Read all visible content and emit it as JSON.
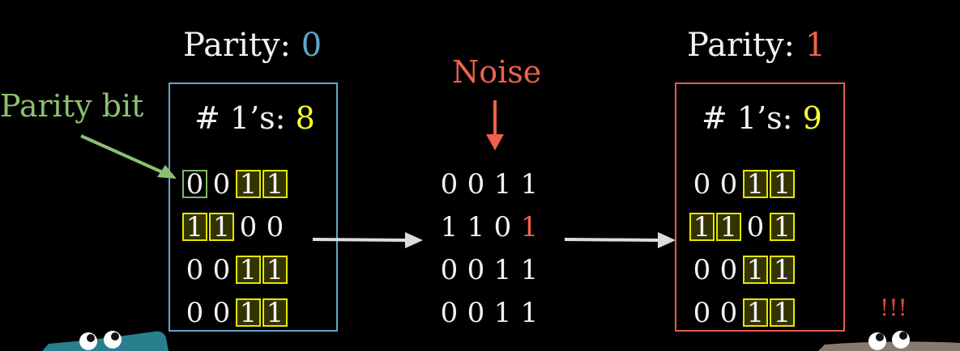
{
  "colors": {
    "parity_zero": "#60a8c8",
    "parity_one": "#f0614a",
    "count": "#ffff33",
    "noise": "#f0614a",
    "parity_bit": "#8cc070",
    "alarm": "#e8453a",
    "left_box": "#60a8c8",
    "right_box": "#e05c50",
    "arrow": "#dcdcdc"
  },
  "label_parity_bit": "Parity bit",
  "label_noise": "Noise",
  "alarm": "!!!",
  "left": {
    "parity_label": "Parity:",
    "parity_value": "0",
    "count_label": "# 1’s:",
    "count_value": "8",
    "rows": [
      [
        "0",
        "0",
        "1",
        "1"
      ],
      [
        "1",
        "1",
        "0",
        "0"
      ],
      [
        "0",
        "0",
        "1",
        "1"
      ],
      [
        "0",
        "0",
        "1",
        "1"
      ]
    ]
  },
  "middle": {
    "rows": [
      [
        "0",
        "0",
        "1",
        "1"
      ],
      [
        "1",
        "1",
        "0",
        "1"
      ],
      [
        "0",
        "0",
        "1",
        "1"
      ],
      [
        "0",
        "0",
        "1",
        "1"
      ]
    ],
    "flipped": {
      "row": 1,
      "col": 3
    }
  },
  "right": {
    "parity_label": "Parity:",
    "parity_value": "1",
    "count_label": "# 1’s:",
    "count_value": "9",
    "rows": [
      [
        "0",
        "0",
        "1",
        "1"
      ],
      [
        "1",
        "1",
        "0",
        "1"
      ],
      [
        "0",
        "0",
        "1",
        "1"
      ],
      [
        "0",
        "0",
        "1",
        "1"
      ]
    ]
  }
}
